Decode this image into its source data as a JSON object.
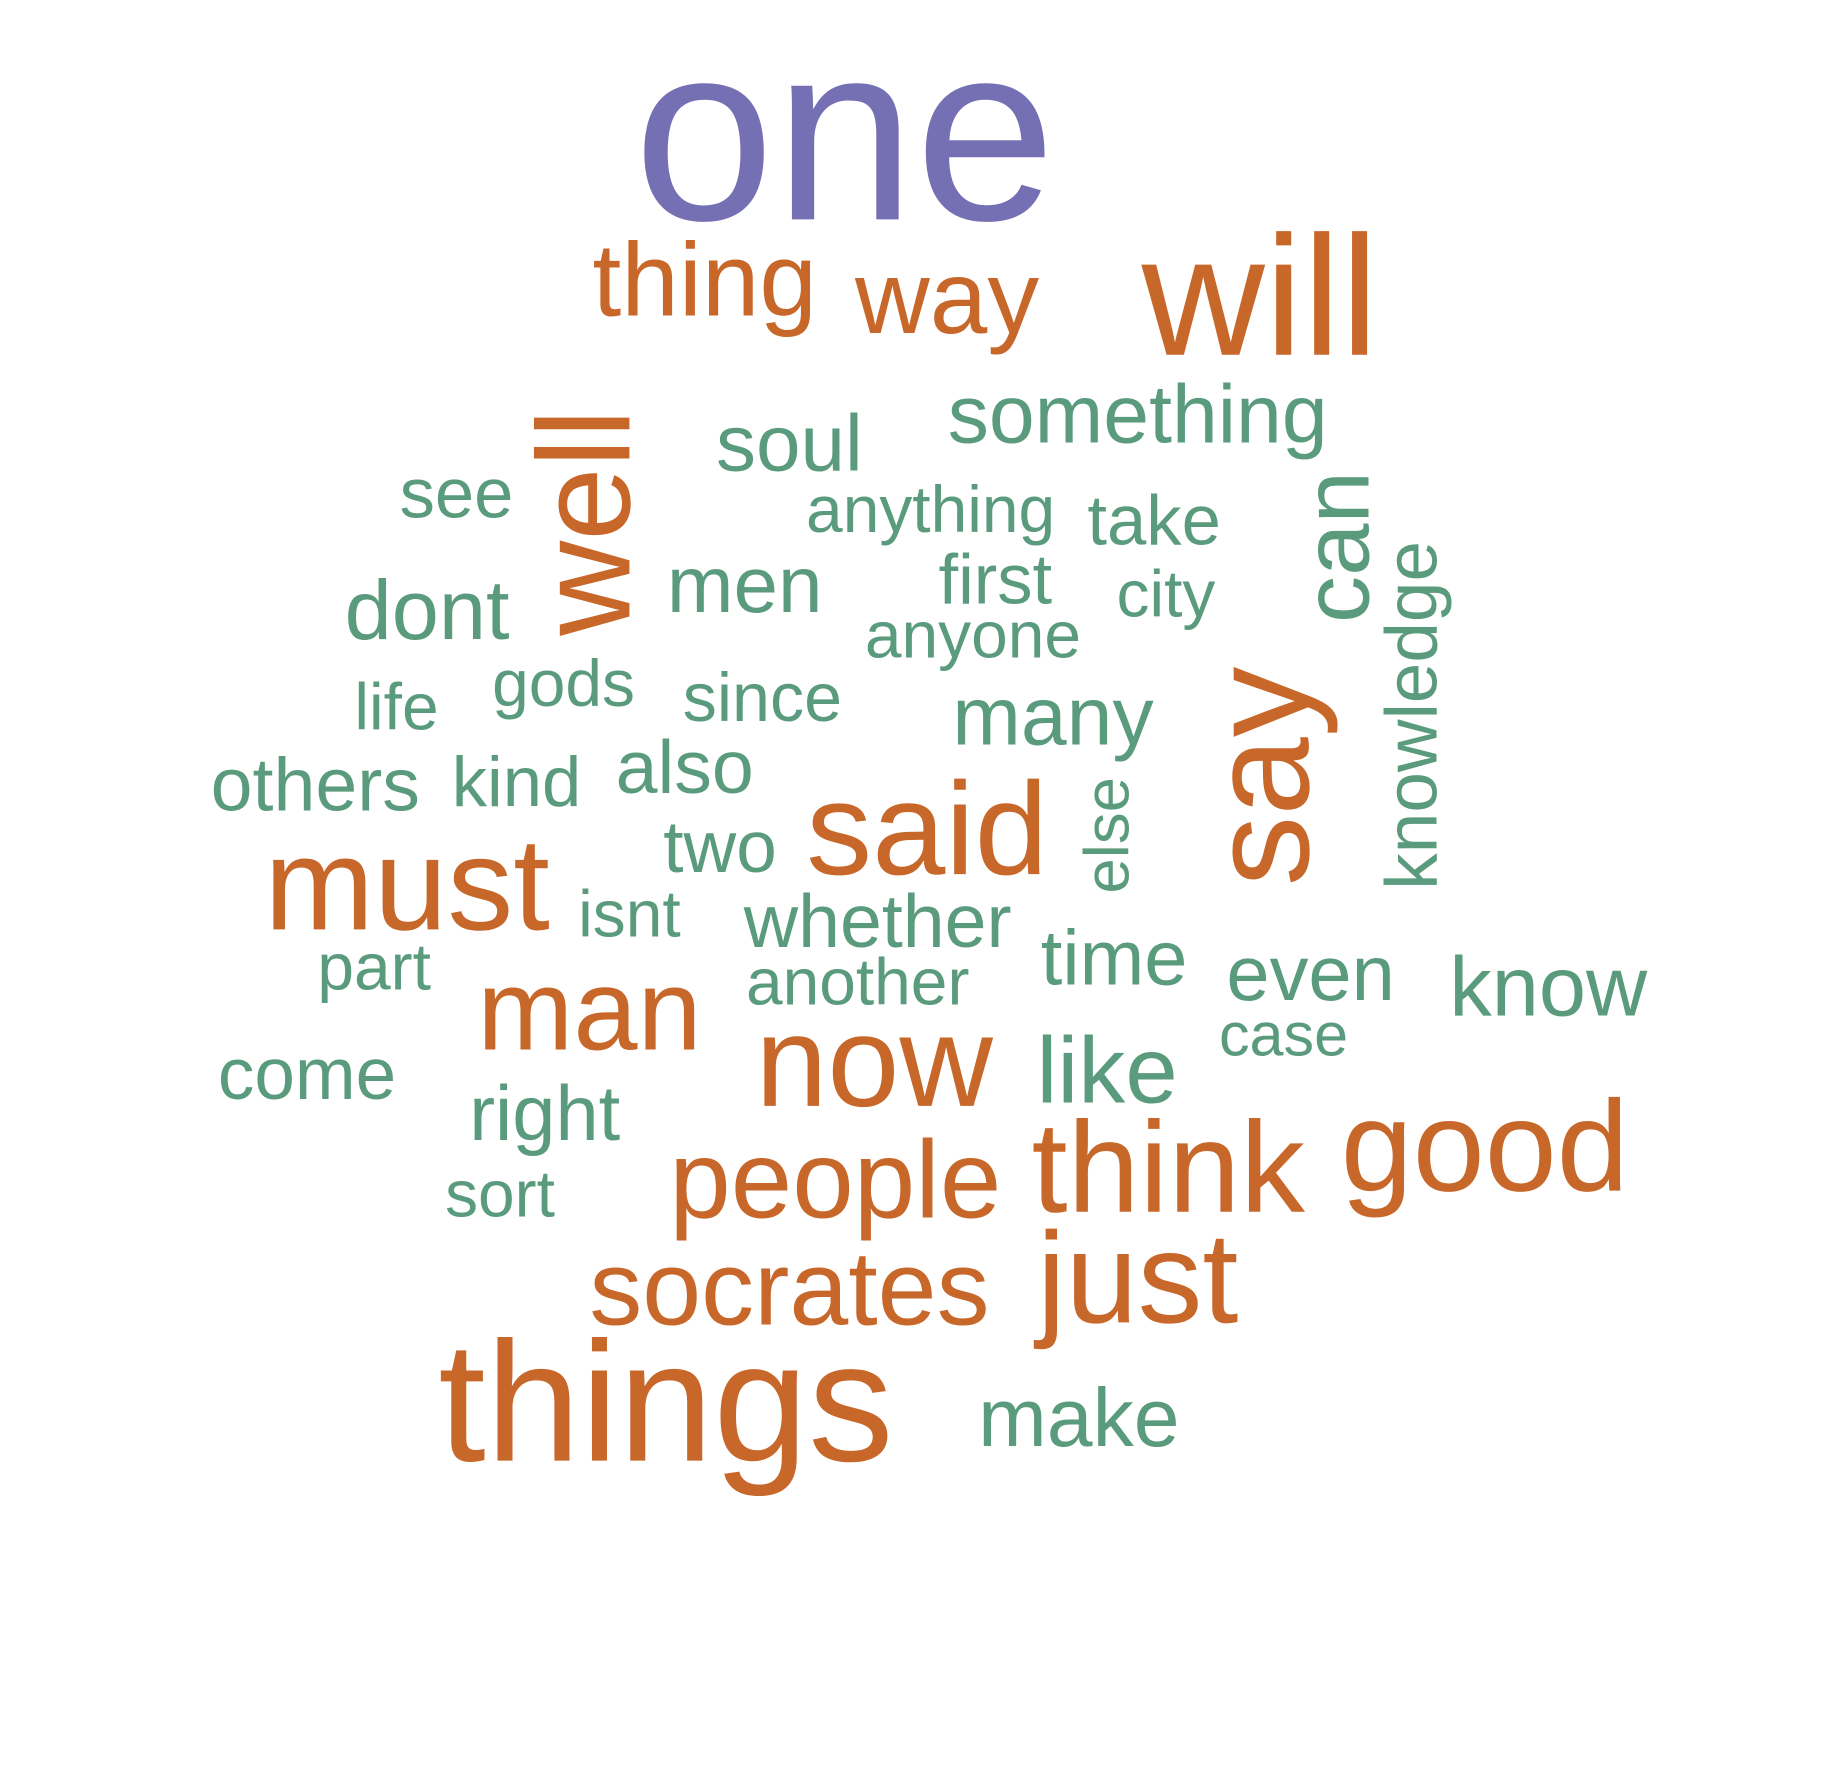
{
  "colors": {
    "top": "#7570b3",
    "high": "#c8672a",
    "mid": "#5a9b7d"
  },
  "words": [
    {
      "text": "one",
      "color": "top"
    },
    {
      "text": "thing",
      "color": "high"
    },
    {
      "text": "way",
      "color": "high"
    },
    {
      "text": "will",
      "color": "high"
    },
    {
      "text": "well",
      "color": "high"
    },
    {
      "text": "something",
      "color": "mid"
    },
    {
      "text": "soul",
      "color": "mid"
    },
    {
      "text": "see",
      "color": "mid"
    },
    {
      "text": "anything",
      "color": "mid"
    },
    {
      "text": "take",
      "color": "mid"
    },
    {
      "text": "can",
      "color": "mid"
    },
    {
      "text": "knowledge",
      "color": "mid"
    },
    {
      "text": "men",
      "color": "mid"
    },
    {
      "text": "first",
      "color": "mid"
    },
    {
      "text": "city",
      "color": "mid"
    },
    {
      "text": "dont",
      "color": "mid"
    },
    {
      "text": "anyone",
      "color": "mid"
    },
    {
      "text": "say",
      "color": "high"
    },
    {
      "text": "gods",
      "color": "mid"
    },
    {
      "text": "life",
      "color": "mid"
    },
    {
      "text": "since",
      "color": "mid"
    },
    {
      "text": "many",
      "color": "mid"
    },
    {
      "text": "others",
      "color": "mid"
    },
    {
      "text": "kind",
      "color": "mid"
    },
    {
      "text": "also",
      "color": "mid"
    },
    {
      "text": "else",
      "color": "mid"
    },
    {
      "text": "said",
      "color": "high"
    },
    {
      "text": "two",
      "color": "mid"
    },
    {
      "text": "must",
      "color": "high"
    },
    {
      "text": "isnt",
      "color": "mid"
    },
    {
      "text": "whether",
      "color": "mid"
    },
    {
      "text": "time",
      "color": "mid"
    },
    {
      "text": "part",
      "color": "mid"
    },
    {
      "text": "even",
      "color": "mid"
    },
    {
      "text": "know",
      "color": "mid"
    },
    {
      "text": "another",
      "color": "mid"
    },
    {
      "text": "man",
      "color": "high"
    },
    {
      "text": "case",
      "color": "mid"
    },
    {
      "text": "now",
      "color": "high"
    },
    {
      "text": "like",
      "color": "mid"
    },
    {
      "text": "come",
      "color": "mid"
    },
    {
      "text": "right",
      "color": "mid"
    },
    {
      "text": "good",
      "color": "high"
    },
    {
      "text": "people",
      "color": "high"
    },
    {
      "text": "think",
      "color": "high"
    },
    {
      "text": "sort",
      "color": "mid"
    },
    {
      "text": "socrates",
      "color": "high"
    },
    {
      "text": "just",
      "color": "high"
    },
    {
      "text": "things",
      "color": "high"
    },
    {
      "text": "make",
      "color": "mid"
    }
  ]
}
